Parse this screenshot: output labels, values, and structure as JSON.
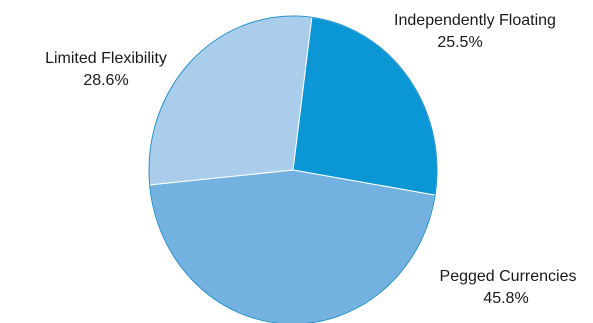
{
  "chart_data": {
    "type": "pie",
    "categories": [
      "Independently Floating",
      "Pegged Currencies",
      "Limited Flexibility"
    ],
    "values": [
      25.5,
      45.8,
      28.6
    ],
    "value_labels": [
      "25.5%",
      "45.8%",
      "28.6%"
    ],
    "title": "",
    "colors": [
      "#0b97d6",
      "#73b1e0",
      "#aacdeb"
    ],
    "edge_color": "#1f8fca"
  }
}
